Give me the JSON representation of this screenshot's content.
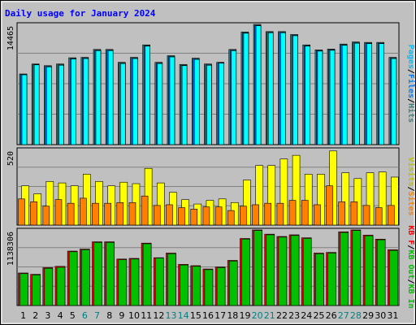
{
  "colors": {
    "frame": "#808080",
    "panel": "#c0c0c0",
    "title": "#0000ff",
    "pages": "#00ffff",
    "pages_label": "#00c0ff",
    "files": "#0080ff",
    "hits": "#408080",
    "visits": "#ffff00",
    "visits_label": "#c0c000",
    "sites": "#ff8000",
    "kb_in": "#00c000",
    "kb_out": "#00c000",
    "kbf": "#ff0000",
    "weekend_day": "#008080",
    "weekday_day": "#000000",
    "separator": "#000000"
  },
  "chart_data": {
    "title": "Daily usage for January 2024",
    "type": "bar",
    "categories": [
      "1",
      "2",
      "3",
      "4",
      "5",
      "6",
      "7",
      "8",
      "9",
      "10",
      "11",
      "12",
      "13",
      "14",
      "15",
      "16",
      "17",
      "18",
      "19",
      "20",
      "21",
      "22",
      "23",
      "24",
      "25",
      "26",
      "27",
      "28",
      "29",
      "30",
      "31"
    ],
    "weekend_days": [
      "6",
      "7",
      "13",
      "14",
      "20",
      "21",
      "27",
      "28"
    ],
    "panels": [
      {
        "id": "hits",
        "max_label": "14465",
        "ymax": 14465,
        "right_label_parts": [
          {
            "text": "Pages",
            "color_key": "pages_label"
          },
          {
            "text": "/",
            "color_key": "separator"
          },
          {
            "text": "Files",
            "color_key": "files"
          },
          {
            "text": "/",
            "color_key": "separator"
          },
          {
            "text": "Hits",
            "color_key": "hits"
          }
        ],
        "series": [
          {
            "name": "Hits",
            "color_key": "hits",
            "values": [
              8500,
              9700,
              9500,
              9700,
              10450,
              10500,
              11450,
              11450,
              9900,
              10500,
              12000,
              9900,
              10700,
              9650,
              10400,
              9700,
              9900,
              11450,
              13550,
              14465,
              13600,
              13600,
              13250,
              12000,
              11400,
              11500,
              12100,
              12350,
              12300,
              12300,
              10500
            ]
          },
          {
            "name": "Files",
            "color_key": "files",
            "values": [
              8450,
              9650,
              9400,
              9600,
              10350,
              10400,
              11350,
              11350,
              9800,
              10400,
              11900,
              9800,
              10600,
              9550,
              10300,
              9600,
              9850,
              11350,
              13450,
              14350,
              13500,
              13500,
              13150,
              11900,
              11300,
              11400,
              12000,
              12250,
              12200,
              12200,
              10400
            ]
          },
          {
            "name": "Pages",
            "color_key": "pages",
            "values": [
              8400,
              9600,
              9350,
              9550,
              10300,
              10350,
              11300,
              11300,
              9750,
              10350,
              11850,
              9750,
              10550,
              9500,
              10250,
              9550,
              9800,
              11300,
              13400,
              14300,
              13450,
              13450,
              13100,
              11850,
              11250,
              11350,
              11950,
              12200,
              12150,
              12150,
              10350
            ]
          }
        ]
      },
      {
        "id": "visits",
        "max_label": "520",
        "ymax": 520,
        "right_label_parts": [
          {
            "text": "Visits",
            "color_key": "visits_label"
          },
          {
            "text": "/",
            "color_key": "separator"
          },
          {
            "text": "Sites",
            "color_key": "sites"
          }
        ],
        "series": [
          {
            "name": "Visits",
            "color_key": "visits",
            "values": [
              270,
              215,
              300,
              290,
              270,
              350,
              300,
              270,
              295,
              285,
              390,
              290,
              225,
              175,
              145,
              170,
              180,
              155,
              310,
              410,
              410,
              455,
              480,
              350,
              350,
              510,
              360,
              320,
              360,
              365,
              330
            ]
          },
          {
            "name": "Sites",
            "color_key": "sites",
            "values": [
              180,
              160,
              130,
              175,
              150,
              185,
              150,
              150,
              155,
              155,
              200,
              135,
              140,
              120,
              110,
              125,
              125,
              100,
              130,
              140,
              150,
              150,
              170,
              170,
              140,
              270,
              160,
              160,
              135,
              120,
              135
            ]
          }
        ]
      },
      {
        "id": "kbytes",
        "max_label": "1138306",
        "ymax": 1138306,
        "right_label_parts": [
          {
            "text": "KB F",
            "color_key": "kbf"
          },
          {
            "text": "/",
            "color_key": "separator"
          },
          {
            "text": "KB Out",
            "color_key": "kb_out"
          },
          {
            "text": "/",
            "color_key": "separator"
          },
          {
            "text": "KB In",
            "color_key": "kb_in"
          }
        ],
        "series": [
          {
            "name": "KB F",
            "color_key": "kbf",
            "values": [
              490000,
              470000,
              570000,
              590000,
              820000,
              850000,
              960000,
              960000,
              700000,
              710000,
              940000,
              720000,
              790000,
              620000,
              600000,
              550000,
              580000,
              680000,
              1010000,
              1138306,
              1075000,
              1040000,
              1065000,
              1020000,
              790000,
              800000,
              1110000,
              1138306,
              1060000,
              1000000,
              840000
            ]
          },
          {
            "name": "KB In",
            "color_key": "kb_in",
            "values": [
              480000,
              460000,
              560000,
              575000,
              810000,
              840000,
              950000,
              950000,
              690000,
              700000,
              930000,
              715000,
              780000,
              610000,
              590000,
              540000,
              570000,
              670000,
              1000000,
              1130000,
              1065000,
              1030000,
              1055000,
              1010000,
              780000,
              790000,
              1100000,
              1130000,
              1050000,
              990000,
              830000
            ]
          }
        ]
      }
    ]
  }
}
